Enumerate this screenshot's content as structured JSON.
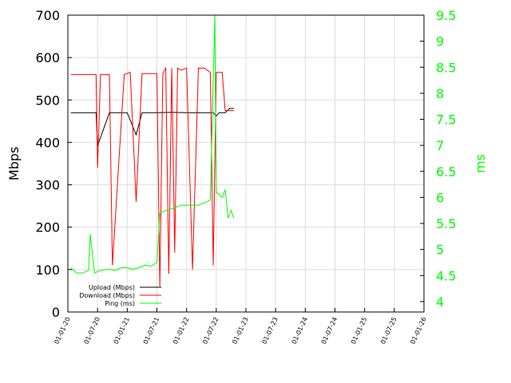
{
  "chart_data": {
    "type": "line",
    "title": "",
    "ylabel": "Mbps",
    "y2label": "ms",
    "ylim": [
      0,
      700
    ],
    "y2lim": [
      3.8,
      9.5
    ],
    "yticks": [
      "0",
      "100",
      "200",
      "300",
      "400",
      "500",
      "600",
      "700"
    ],
    "y2ticks": [
      "4",
      "4.5",
      "5",
      "5.5",
      "6",
      "6.5",
      "7",
      "7.5",
      "8",
      "8.5",
      "9",
      "9.5"
    ],
    "xticks": [
      "01-01-20",
      "01-07-20",
      "01-01-21",
      "01-07-21",
      "01-01-22",
      "01-07-22",
      "01-01-23",
      "01-07-23",
      "01-01-24",
      "01-07-24",
      "01-01-25",
      "01-07-25",
      "01-01-26"
    ],
    "grid": true,
    "legend_position": "bottom-left",
    "colors": {
      "upload": "#000000",
      "download": "#ff0000",
      "ping": "#00ff00",
      "y2axis": "#00ff00"
    },
    "series": [
      {
        "name": "Upload (Mbps)",
        "axis": "left",
        "x": [
          0.1,
          0.5,
          0.95,
          1.0,
          1.4,
          1.6,
          2.0,
          2.3,
          2.5,
          3.0,
          3.5,
          4.0,
          4.5,
          4.9,
          5.0,
          5.1,
          5.3,
          5.45,
          5.6
        ],
        "values": [
          470,
          470,
          470,
          392,
          470,
          470,
          470,
          418,
          470,
          470,
          471,
          470,
          470,
          470,
          462,
          470,
          470,
          480,
          480
        ]
      },
      {
        "name": "Download (Mbps)",
        "axis": "left",
        "x": [
          0.1,
          0.5,
          0.95,
          1.0,
          1.1,
          1.4,
          1.5,
          1.9,
          2.1,
          2.3,
          2.5,
          3.0,
          3.1,
          3.2,
          3.3,
          3.4,
          3.5,
          3.6,
          3.7,
          3.8,
          4.0,
          4.2,
          4.4,
          4.6,
          4.8,
          4.9,
          5.0,
          5.2,
          5.3,
          5.4,
          5.5,
          5.6
        ],
        "values": [
          560,
          560,
          560,
          340,
          560,
          560,
          110,
          560,
          565,
          260,
          562,
          562,
          60,
          562,
          575,
          90,
          575,
          140,
          575,
          570,
          575,
          100,
          575,
          575,
          565,
          110,
          565,
          565,
          475,
          475,
          475,
          475
        ]
      },
      {
        "name": "Ping (ms)",
        "axis": "right",
        "x": [
          0.1,
          0.3,
          0.5,
          0.7,
          0.75,
          0.9,
          1.1,
          1.4,
          1.6,
          1.8,
          2.0,
          2.2,
          2.4,
          2.6,
          2.8,
          3.0,
          3.1,
          3.3,
          3.6,
          3.8,
          4.0,
          4.2,
          4.4,
          4.6,
          4.8,
          4.95,
          5.0,
          5.2,
          5.3,
          5.4,
          5.5,
          5.6
        ],
        "values": [
          4.65,
          4.55,
          4.55,
          4.6,
          5.3,
          4.55,
          4.6,
          4.62,
          4.6,
          4.65,
          4.65,
          4.62,
          4.65,
          4.7,
          4.68,
          4.75,
          5.7,
          5.75,
          5.8,
          5.85,
          5.85,
          5.85,
          5.85,
          5.9,
          5.95,
          9.5,
          6.1,
          6.0,
          6.15,
          5.6,
          5.75,
          5.6
        ]
      }
    ]
  }
}
